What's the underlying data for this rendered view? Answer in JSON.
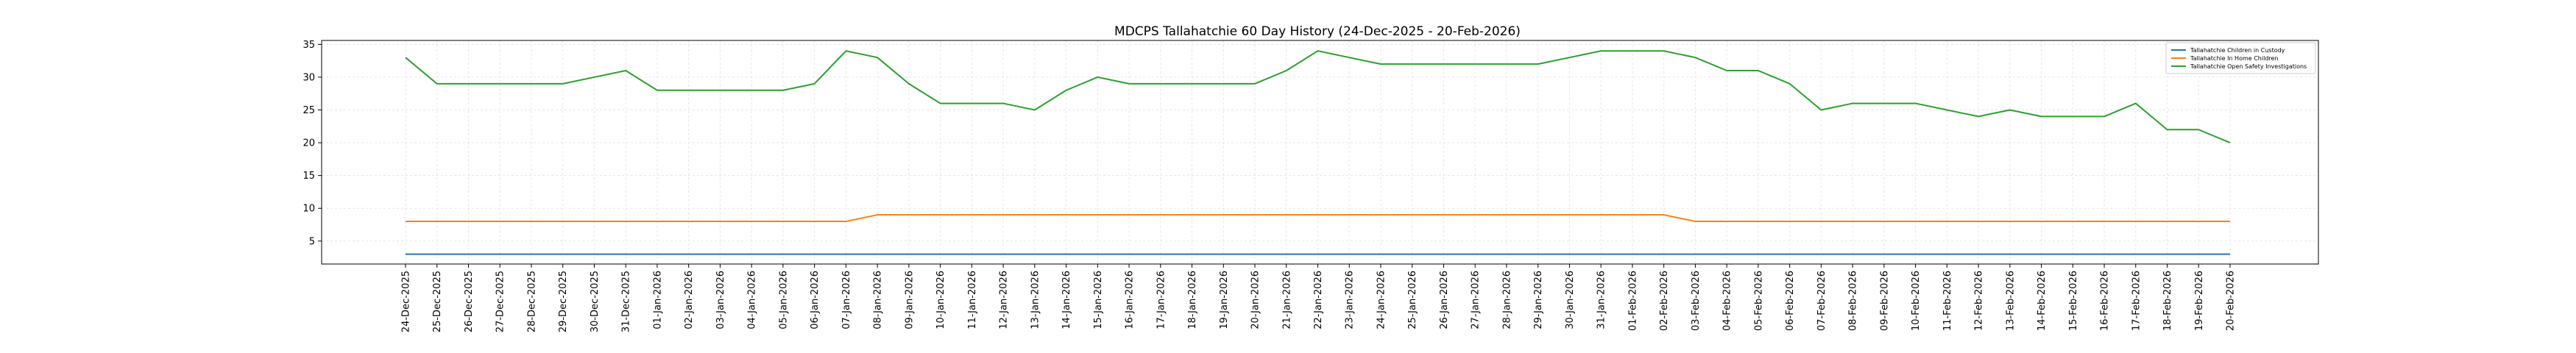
{
  "chart_data": {
    "type": "line",
    "title": "MDCPS Tallahatchie 60 Day History (24-Dec-2025 - 20-Feb-2026)",
    "xlabel": "",
    "ylabel": "",
    "ylim": [
      1.5,
      35.6
    ],
    "yticks": [
      5,
      10,
      15,
      20,
      25,
      30,
      35
    ],
    "grid": true,
    "legend_position": "top-right",
    "categories": [
      "24-Dec-2025",
      "25-Dec-2025",
      "26-Dec-2025",
      "27-Dec-2025",
      "28-Dec-2025",
      "29-Dec-2025",
      "30-Dec-2025",
      "31-Dec-2025",
      "01-Jan-2026",
      "02-Jan-2026",
      "03-Jan-2026",
      "04-Jan-2026",
      "05-Jan-2026",
      "06-Jan-2026",
      "07-Jan-2026",
      "08-Jan-2026",
      "09-Jan-2026",
      "10-Jan-2026",
      "11-Jan-2026",
      "12-Jan-2026",
      "13-Jan-2026",
      "14-Jan-2026",
      "15-Jan-2026",
      "16-Jan-2026",
      "17-Jan-2026",
      "18-Jan-2026",
      "19-Jan-2026",
      "20-Jan-2026",
      "21-Jan-2026",
      "22-Jan-2026",
      "23-Jan-2026",
      "24-Jan-2026",
      "25-Jan-2026",
      "26-Jan-2026",
      "27-Jan-2026",
      "28-Jan-2026",
      "29-Jan-2026",
      "30-Jan-2026",
      "31-Jan-2026",
      "01-Feb-2026",
      "02-Feb-2026",
      "03-Feb-2026",
      "04-Feb-2026",
      "05-Feb-2026",
      "06-Feb-2026",
      "07-Feb-2026",
      "08-Feb-2026",
      "09-Feb-2026",
      "10-Feb-2026",
      "11-Feb-2026",
      "12-Feb-2026",
      "13-Feb-2026",
      "14-Feb-2026",
      "15-Feb-2026",
      "16-Feb-2026",
      "17-Feb-2026",
      "18-Feb-2026",
      "19-Feb-2026",
      "20-Feb-2026"
    ],
    "series": [
      {
        "name": "Tallahatchie Children in Custody",
        "color": "#1f77b4",
        "values": [
          3,
          3,
          3,
          3,
          3,
          3,
          3,
          3,
          3,
          3,
          3,
          3,
          3,
          3,
          3,
          3,
          3,
          3,
          3,
          3,
          3,
          3,
          3,
          3,
          3,
          3,
          3,
          3,
          3,
          3,
          3,
          3,
          3,
          3,
          3,
          3,
          3,
          3,
          3,
          3,
          3,
          3,
          3,
          3,
          3,
          3,
          3,
          3,
          3,
          3,
          3,
          3,
          3,
          3,
          3,
          3,
          3,
          3,
          3
        ]
      },
      {
        "name": "Tallahatchie In Home Children",
        "color": "#ff7f0e",
        "values": [
          8,
          8,
          8,
          8,
          8,
          8,
          8,
          8,
          8,
          8,
          8,
          8,
          8,
          8,
          8,
          9,
          9,
          9,
          9,
          9,
          9,
          9,
          9,
          9,
          9,
          9,
          9,
          9,
          9,
          9,
          9,
          9,
          9,
          9,
          9,
          9,
          9,
          9,
          9,
          9,
          9,
          8,
          8,
          8,
          8,
          8,
          8,
          8,
          8,
          8,
          8,
          8,
          8,
          8,
          8,
          8,
          8,
          8,
          8
        ]
      },
      {
        "name": "Tallahatchie Open Safety Investigations",
        "color": "#2ca02c",
        "values": [
          33,
          29,
          29,
          29,
          29,
          29,
          30,
          31,
          28,
          28,
          28,
          28,
          28,
          29,
          34,
          33,
          29,
          26,
          26,
          26,
          25,
          28,
          30,
          29,
          29,
          29,
          29,
          29,
          31,
          34,
          33,
          32,
          32,
          32,
          32,
          32,
          32,
          33,
          34,
          34,
          34,
          33,
          31,
          31,
          29,
          25,
          26,
          26,
          26,
          25,
          24,
          25,
          24,
          24,
          24,
          26,
          22,
          22,
          20
        ]
      }
    ]
  }
}
